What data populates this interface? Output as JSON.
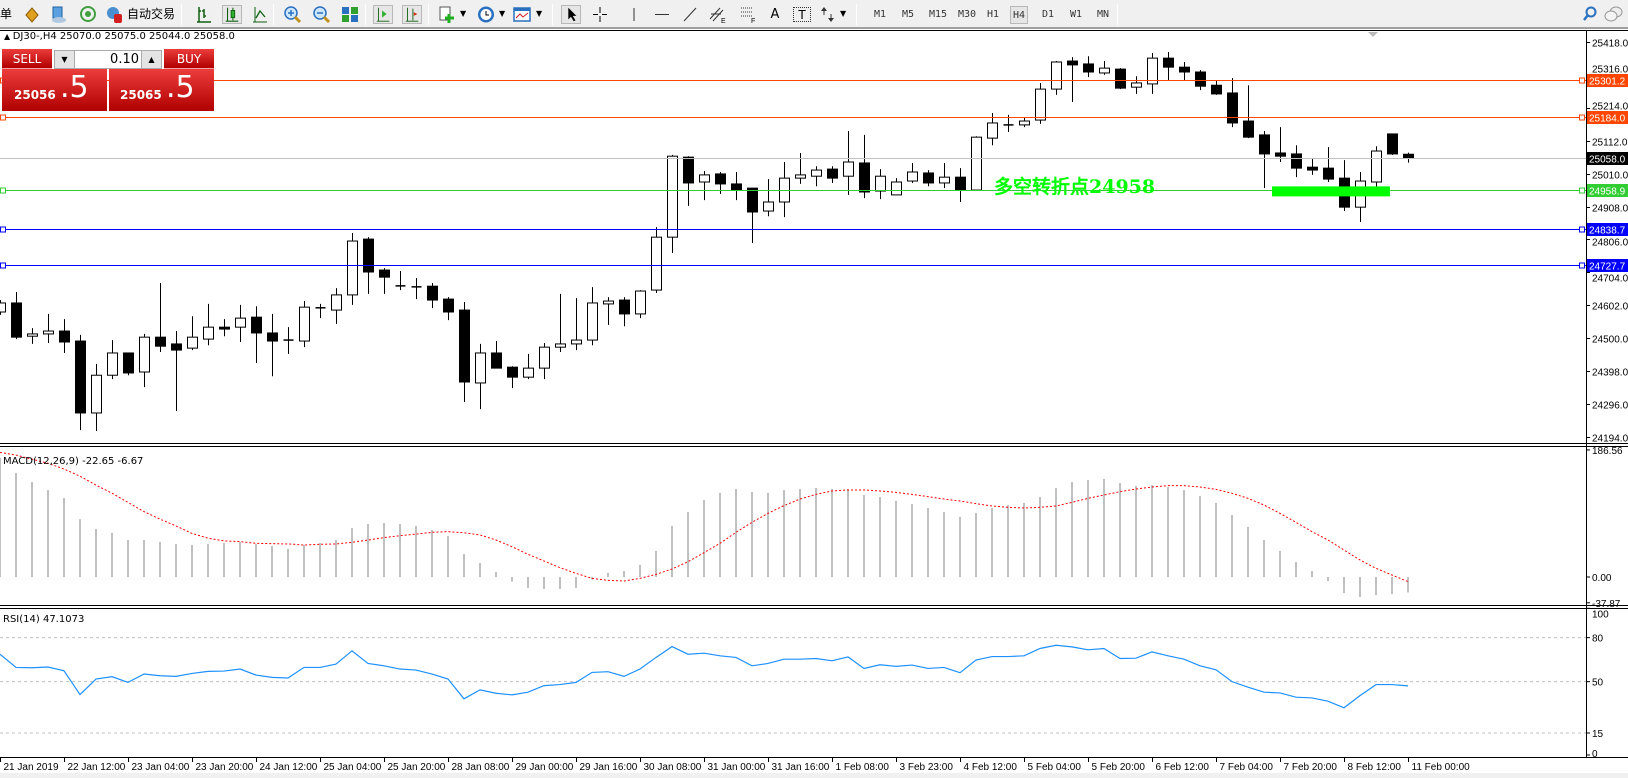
{
  "toolbar": {
    "new_order_fragment": "单",
    "autotrading_label": "自动交易",
    "icons": [
      "new-order",
      "market-watch",
      "navigator",
      "signals",
      "autotrading",
      "bar-chart",
      "candlesticks",
      "line-chart",
      "zoom-in",
      "zoom-out",
      "tile-windows",
      "auto-scroll",
      "chart-shift",
      "indicators",
      "periodicity",
      "templates",
      "cursor",
      "crosshair",
      "vertical-line",
      "horizontal-line",
      "trendline",
      "equidistant-channel",
      "fibonacci",
      "text",
      "text-label",
      "arrows",
      "search",
      "chat"
    ],
    "equidistant_sub": "E",
    "fib_sub": "F",
    "text_glyph": "A",
    "label_glyph": "T",
    "timeframes": [
      "M1",
      "M5",
      "M15",
      "M30",
      "H1",
      "H4",
      "D1",
      "W1",
      "MN"
    ],
    "active_timeframe": "H4"
  },
  "symbol_header": "DJ30-,H4  25070.0 25075.0 25044.0 25058.0",
  "trade_panel": {
    "sell_label": "SELL",
    "buy_label": "BUY",
    "lot": "0.10",
    "sell_big": "25056",
    "sell_small": ".5",
    "buy_big": "25065",
    "buy_small": ".5"
  },
  "annotation": {
    "text": "多空转折点24958",
    "color": "#00ff00",
    "level": 24958
  },
  "colors": {
    "bull_body": "#ffffff",
    "bear_body": "#000000",
    "grid_dash": "#c0c0c0",
    "macd_hist": "#c0c0c0",
    "macd_signal": "#ff0000",
    "rsi": "#1e90ff"
  },
  "chart_data": [
    {
      "type": "candlestick",
      "symbol": "DJ30-",
      "timeframe": "H4",
      "ylim": [
        24194,
        25418
      ],
      "y_ticks": [
        "25418.0",
        "25316.0",
        "25214.0",
        "25112.0",
        "25010.0",
        "24908.0",
        "24806.0",
        "24704.0",
        "24602.0",
        "24500.0",
        "24398.0",
        "24296.0",
        "24194.0"
      ],
      "x_labels": [
        "21 Jan 2019",
        "22 Jan 12:00",
        "23 Jan 04:00",
        "23 Jan 20:00",
        "24 Jan 12:00",
        "25 Jan 04:00",
        "25 Jan 20:00",
        "28 Jan 08:00",
        "29 Jan 00:00",
        "29 Jan 16:00",
        "30 Jan 08:00",
        "31 Jan 00:00",
        "31 Jan 16:00",
        "1 Feb 08:00",
        "3 Feb 23:00",
        "4 Feb 12:00",
        "5 Feb 04:00",
        "5 Feb 20:00",
        "6 Feb 12:00",
        "7 Feb 04:00",
        "7 Feb 20:00",
        "8 Feb 12:00",
        "11 Feb 00:00"
      ],
      "x_label_every_bars": 4,
      "ohlc": [
        [
          24581,
          24618,
          24572,
          24609
        ],
        [
          24609,
          24643,
          24497,
          24503
        ],
        [
          24506,
          24531,
          24482,
          24513
        ],
        [
          24513,
          24575,
          24485,
          24522
        ],
        [
          24522,
          24559,
          24454,
          24488
        ],
        [
          24491,
          24510,
          24215,
          24268
        ],
        [
          24268,
          24420,
          24212,
          24385
        ],
        [
          24385,
          24494,
          24373,
          24454
        ],
        [
          24454,
          24454,
          24385,
          24392
        ],
        [
          24395,
          24513,
          24348,
          24503
        ],
        [
          24503,
          24671,
          24457,
          24475
        ],
        [
          24482,
          24522,
          24274,
          24463
        ],
        [
          24469,
          24568,
          24463,
          24503
        ],
        [
          24497,
          24606,
          24478,
          24534
        ],
        [
          24534,
          24559,
          24506,
          24528
        ],
        [
          24534,
          24603,
          24488,
          24562
        ],
        [
          24565,
          24599,
          24423,
          24516
        ],
        [
          24516,
          24575,
          24382,
          24491
        ],
        [
          24494,
          24534,
          24451,
          24491
        ],
        [
          24491,
          24615,
          24472,
          24596
        ],
        [
          24593,
          24606,
          24562,
          24594
        ],
        [
          24587,
          24655,
          24544,
          24634
        ],
        [
          24634,
          24826,
          24603,
          24801
        ],
        [
          24807,
          24813,
          24637,
          24705
        ],
        [
          24711,
          24717,
          24637,
          24689
        ],
        [
          24661,
          24708,
          24649,
          24662
        ],
        [
          24658,
          24686,
          24621,
          24659
        ],
        [
          24661,
          24671,
          24593,
          24618
        ],
        [
          24621,
          24627,
          24556,
          24581
        ],
        [
          24587,
          24612,
          24302,
          24364
        ],
        [
          24361,
          24482,
          24280,
          24454
        ],
        [
          24454,
          24491,
          24407,
          24407
        ],
        [
          24410,
          24413,
          24345,
          24379
        ],
        [
          24379,
          24451,
          24373,
          24407
        ],
        [
          24407,
          24485,
          24373,
          24472
        ],
        [
          24472,
          24637,
          24457,
          24482
        ],
        [
          24482,
          24624,
          24463,
          24494
        ],
        [
          24494,
          24658,
          24478,
          24609
        ],
        [
          24606,
          24627,
          24541,
          24615
        ],
        [
          24618,
          24627,
          24537,
          24575
        ],
        [
          24575,
          24649,
          24562,
          24646
        ],
        [
          24649,
          24844,
          24640,
          24813
        ],
        [
          24813,
          25068,
          24764,
          25064
        ],
        [
          25061,
          25064,
          24910,
          24981
        ],
        [
          24984,
          25018,
          24928,
          25006
        ],
        [
          25009,
          25015,
          24947,
          24978
        ],
        [
          24978,
          25015,
          24928,
          24959
        ],
        [
          24965,
          24965,
          24795,
          24891
        ],
        [
          24894,
          24993,
          24878,
          24922
        ],
        [
          24922,
          25046,
          24875,
          24996
        ],
        [
          24996,
          25074,
          24978,
          25006
        ],
        [
          25002,
          25033,
          24971,
          25021
        ],
        [
          25024,
          25033,
          24981,
          24996
        ],
        [
          25002,
          25142,
          24944,
          25046
        ],
        [
          25043,
          25130,
          24934,
          24953
        ],
        [
          24956,
          25024,
          24931,
          25002
        ],
        [
          24944,
          24996,
          24944,
          24984
        ],
        [
          24987,
          25043,
          24981,
          25015
        ],
        [
          25012,
          25021,
          24971,
          24981
        ],
        [
          24981,
          25043,
          24965,
          24999
        ],
        [
          24999,
          25027,
          24922,
          24959
        ],
        [
          24959,
          25126,
          24959,
          25123
        ],
        [
          25120,
          25198,
          25098,
          25167
        ],
        [
          25161,
          25192,
          25139,
          25160
        ],
        [
          25161,
          25185,
          25154,
          25173
        ],
        [
          25176,
          25291,
          25164,
          25272
        ],
        [
          25272,
          25359,
          25254,
          25356
        ],
        [
          25359,
          25371,
          25232,
          25347
        ],
        [
          25350,
          25374,
          25309,
          25325
        ],
        [
          25322,
          25359,
          25316,
          25337
        ],
        [
          25334,
          25337,
          25272,
          25275
        ],
        [
          25278,
          25312,
          25257,
          25291
        ],
        [
          25288,
          25384,
          25257,
          25368
        ],
        [
          25368,
          25387,
          25300,
          25340
        ],
        [
          25340,
          25356,
          25300,
          25325
        ],
        [
          25325,
          25331,
          25269,
          25281
        ],
        [
          25284,
          25297,
          25254,
          25257
        ],
        [
          25260,
          25306,
          25154,
          25167
        ],
        [
          25173,
          25284,
          25120,
          25123
        ],
        [
          25130,
          25142,
          24965,
          25071
        ],
        [
          25074,
          25154,
          25046,
          25064
        ],
        [
          25071,
          25098,
          24999,
          25027
        ],
        [
          25030,
          25058,
          25006,
          25021
        ],
        [
          25027,
          25092,
          24984,
          24993
        ],
        [
          24996,
          25052,
          24894,
          24906
        ],
        [
          24906,
          25015,
          24860,
          24987
        ],
        [
          24984,
          25095,
          24968,
          25080
        ],
        [
          25133,
          25133,
          25068,
          25071
        ],
        [
          25070,
          25075,
          25044,
          25058
        ]
      ],
      "hlines": [
        {
          "price": 25301.2,
          "label": "25301.2",
          "color": "#ff4500"
        },
        {
          "price": 25184.0,
          "label": "25184.0",
          "color": "#ff4500"
        },
        {
          "price": 25058.0,
          "label": "25058.0",
          "color": "#000000",
          "line_color": "#c0c0c0"
        },
        {
          "price": 24958.9,
          "label": "24958.9",
          "color": "#32cd32"
        },
        {
          "price": 24838.7,
          "label": "24838.7",
          "color": "#0000ff"
        },
        {
          "price": 24727.7,
          "label": "24727.7",
          "color": "#0000ff"
        }
      ]
    },
    {
      "type": "bar+line",
      "name": "MACD(12,26,9)",
      "label": "MACD(12,26,9) -22.65 -6.67",
      "ylim": [
        -37.87,
        186.56
      ],
      "y_ticks": [
        "186.56",
        "0.00",
        "-37.87"
      ],
      "histogram": [
        175,
        152.7,
        139.5,
        127.8,
        116,
        85,
        70.5,
        64.6,
        54.3,
        54.3,
        51.4,
        48.5,
        47,
        48.5,
        50,
        51.4,
        48.5,
        45.5,
        41,
        47,
        50,
        54.3,
        72,
        77.8,
        79.3,
        77.8,
        74.9,
        69,
        60.2,
        33.8,
        20.6,
        7.3,
        -6.9,
        -16,
        -17.6,
        -17.6,
        -16,
        -4,
        5.9,
        8.8,
        17.6,
        38.2,
        74.9,
        95.5,
        113,
        123.4,
        129.2,
        124.8,
        123.4,
        127.8,
        129.2,
        130.7,
        129.2,
        129.2,
        120.4,
        117.5,
        111.6,
        107.2,
        101.3,
        95.5,
        88.1,
        94,
        101.3,
        105.7,
        108.7,
        117.5,
        130.7,
        139.5,
        142.4,
        143.9,
        138,
        133.6,
        135.1,
        132.2,
        127.8,
        119,
        108.7,
        91,
        73.4,
        54.3,
        38.2,
        22,
        8.8,
        -5.9,
        -23.5,
        -29.4,
        -26.4,
        -25,
        -22.65
      ],
      "signal": [
        183,
        179,
        173,
        167,
        158.6,
        148,
        135,
        123,
        109.6,
        96,
        85,
        75,
        64,
        57,
        53,
        52,
        49.4,
        49,
        48.5,
        47,
        48,
        48.5,
        51,
        54.3,
        57.8,
        60.7,
        63,
        65.6,
        66.6,
        65,
        61.7,
        54.3,
        44.5,
        33.3,
        23.5,
        13.7,
        5.4,
        -2,
        -4.9,
        -5.9,
        -2,
        3.9,
        11.7,
        22.5,
        35.7,
        49.4,
        65.6,
        80.3,
        93.5,
        104.8,
        114.5,
        121.4,
        126.3,
        127.8,
        127.8,
        126.3,
        124.3,
        121.4,
        118,
        114.5,
        111.6,
        107.7,
        104.3,
        102.3,
        101.3,
        102.3,
        104.3,
        109.6,
        115.5,
        120.4,
        125.3,
        129.2,
        132.2,
        134.1,
        134.1,
        132.2,
        128.7,
        122.9,
        115.5,
        105.7,
        93.5,
        80.3,
        66.6,
        54.3,
        39.6,
        25,
        12.7,
        2.9,
        -6.67
      ]
    },
    {
      "type": "line",
      "name": "RSI(14)",
      "label": "RSI(14) 47.1073",
      "ylim": [
        0,
        100
      ],
      "y_ticks": [
        "100",
        "80",
        "50",
        "15",
        "0"
      ],
      "levels": [
        80,
        50,
        15
      ],
      "values": [
        68.7,
        59.7,
        59.5,
        60,
        57.4,
        41.2,
        51.8,
        53.4,
        49.5,
        55.2,
        54,
        53.6,
        55.6,
        57,
        57.2,
        58.6,
        54.5,
        52.9,
        52.5,
        59.7,
        59.7,
        62,
        71,
        62.4,
        60.8,
        58.6,
        57.9,
        55.2,
        51.8,
        38.3,
        44.4,
        42.1,
        41,
        42.8,
        47.3,
        48,
        49.5,
        56.3,
        56.8,
        53.6,
        58.6,
        66.5,
        73.9,
        68.7,
        69.4,
        67.6,
        66.5,
        60.8,
        62.4,
        65.3,
        65.3,
        65.8,
        64.2,
        66.9,
        59,
        61.5,
        60.4,
        61.3,
        59,
        59.7,
        56.1,
        64.7,
        67.1,
        67.1,
        67.6,
        72.6,
        74.8,
        73.7,
        71.7,
        72.6,
        65.8,
        66,
        70.3,
        67.6,
        65.3,
        60.8,
        58.1,
        50,
        46.2,
        42.8,
        42.3,
        39.4,
        38.9,
        36.7,
        32.2,
        40.5,
        48,
        48,
        47.1073
      ]
    }
  ]
}
